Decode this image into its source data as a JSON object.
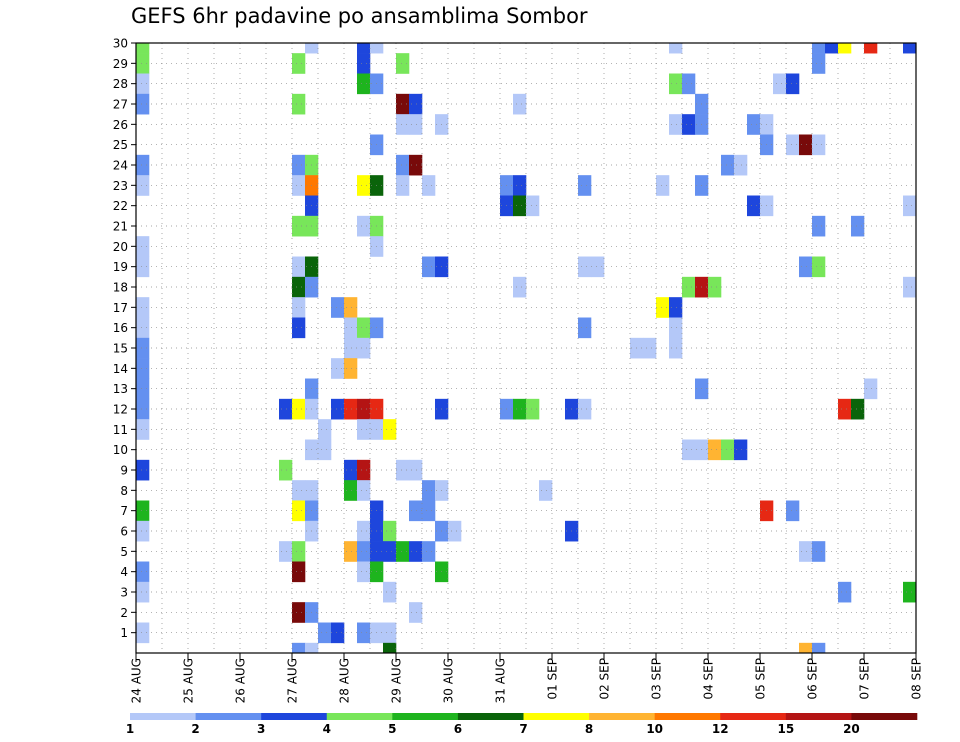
{
  "chart_data": {
    "type": "heatmap",
    "title": "GEFS 6hr padavine po ansamblima Sombor",
    "x_tick_labels": [
      "24 AUG",
      "25 AUG",
      "26 AUG",
      "27 AUG",
      "28 AUG",
      "29 AUG",
      "30 AUG",
      "31 AUG",
      "01 SEP",
      "02 SEP",
      "03 SEP",
      "04 SEP",
      "05 SEP",
      "06 SEP",
      "07 SEP",
      "08 SEP"
    ],
    "y_tick_labels": [
      "1",
      "2",
      "3",
      "4",
      "5",
      "6",
      "7",
      "8",
      "9",
      "10",
      "11",
      "12",
      "13",
      "14",
      "15",
      "16",
      "17",
      "18",
      "19",
      "20",
      "21",
      "22",
      "23",
      "24",
      "25",
      "26",
      "27",
      "28",
      "29",
      "30"
    ],
    "xlim_days": [
      0,
      15
    ],
    "ylim_members": [
      0,
      30
    ],
    "grid": true,
    "colorbar": {
      "labels": [
        "1",
        "2",
        "3",
        "4",
        "5",
        "6",
        "7",
        "8",
        "10",
        "12",
        "15",
        "20"
      ],
      "colors": [
        "#b4c8f8",
        "#6490f0",
        "#1e46dc",
        "#78e65a",
        "#1eb41e",
        "#0a640a",
        "#ffff00",
        "#ffb432",
        "#ff7800",
        "#e62814",
        "#b41414",
        "#780a0a"
      ]
    },
    "cells": [
      {
        "d": 0.0,
        "m": 30,
        "v": 4
      },
      {
        "d": 0.0,
        "m": 29,
        "v": 4
      },
      {
        "d": 0.0,
        "m": 28,
        "v": 1
      },
      {
        "d": 0.0,
        "m": 27,
        "v": 2
      },
      {
        "d": 0.0,
        "m": 24,
        "v": 2
      },
      {
        "d": 0.0,
        "m": 23,
        "v": 1
      },
      {
        "d": 0.0,
        "m": 20,
        "v": 1
      },
      {
        "d": 0.0,
        "m": 19,
        "v": 1
      },
      {
        "d": 0.0,
        "m": 17,
        "v": 1
      },
      {
        "d": 0.0,
        "m": 16,
        "v": 1
      },
      {
        "d": 0.0,
        "m": 15,
        "v": 2
      },
      {
        "d": 0.0,
        "m": 14,
        "v": 2
      },
      {
        "d": 0.0,
        "m": 13,
        "v": 2
      },
      {
        "d": 0.0,
        "m": 12,
        "v": 2
      },
      {
        "d": 0.0,
        "m": 11,
        "v": 1
      },
      {
        "d": 0.0,
        "m": 9,
        "v": 3
      },
      {
        "d": 0.0,
        "m": 7,
        "v": 5
      },
      {
        "d": 0.0,
        "m": 6,
        "v": 1
      },
      {
        "d": 0.0,
        "m": 4,
        "v": 2
      },
      {
        "d": 0.0,
        "m": 3,
        "v": 1
      },
      {
        "d": 0.0,
        "m": 1,
        "v": 1
      },
      {
        "d": 3.0,
        "m": 29,
        "v": 4
      },
      {
        "d": 3.0,
        "m": 27,
        "v": 4
      },
      {
        "d": 3.0,
        "m": 24,
        "v": 2
      },
      {
        "d": 3.25,
        "m": 24,
        "v": 4
      },
      {
        "d": 3.0,
        "m": 23,
        "v": 1
      },
      {
        "d": 3.25,
        "m": 23,
        "v": 10
      },
      {
        "d": 3.25,
        "m": 22,
        "v": 3
      },
      {
        "d": 3.0,
        "m": 21,
        "v": 4
      },
      {
        "d": 3.25,
        "m": 21,
        "v": 4
      },
      {
        "d": 3.0,
        "m": 19,
        "v": 1
      },
      {
        "d": 3.25,
        "m": 19,
        "v": 6
      },
      {
        "d": 3.0,
        "m": 18,
        "v": 6
      },
      {
        "d": 3.25,
        "m": 18,
        "v": 2
      },
      {
        "d": 3.0,
        "m": 17,
        "v": 1
      },
      {
        "d": 3.0,
        "m": 16,
        "v": 3
      },
      {
        "d": 3.25,
        "m": 13,
        "v": 2
      },
      {
        "d": 2.75,
        "m": 12,
        "v": 3
      },
      {
        "d": 3.0,
        "m": 12,
        "v": 7
      },
      {
        "d": 3.25,
        "m": 12,
        "v": 1
      },
      {
        "d": 2.75,
        "m": 9,
        "v": 4
      },
      {
        "d": 3.0,
        "m": 8,
        "v": 1
      },
      {
        "d": 3.25,
        "m": 8,
        "v": 1
      },
      {
        "d": 3.0,
        "m": 7,
        "v": 7
      },
      {
        "d": 3.25,
        "m": 7,
        "v": 2
      },
      {
        "d": 3.25,
        "m": 6,
        "v": 1
      },
      {
        "d": 2.75,
        "m": 5,
        "v": 1
      },
      {
        "d": 3.0,
        "m": 5,
        "v": 4
      },
      {
        "d": 3.0,
        "m": 4,
        "v": 20
      },
      {
        "d": 3.0,
        "m": 2,
        "v": 20
      },
      {
        "d": 3.25,
        "m": 2,
        "v": 2
      },
      {
        "d": 3.0,
        "m": 0,
        "v": 2
      },
      {
        "d": 3.25,
        "m": 0,
        "v": 1
      },
      {
        "d": 3.25,
        "m": 30,
        "v": 1
      },
      {
        "d": 3.5,
        "m": 11,
        "v": 1
      },
      {
        "d": 3.25,
        "m": 10,
        "v": 1
      },
      {
        "d": 3.5,
        "m": 10,
        "v": 1
      },
      {
        "d": 3.5,
        "m": 1,
        "v": 2
      },
      {
        "d": 3.75,
        "m": 1,
        "v": 3
      },
      {
        "d": 3.75,
        "m": 17,
        "v": 2
      },
      {
        "d": 4.0,
        "m": 17,
        "v": 8
      },
      {
        "d": 4.0,
        "m": 16,
        "v": 1
      },
      {
        "d": 4.25,
        "m": 16,
        "v": 4
      },
      {
        "d": 4.0,
        "m": 15,
        "v": 1
      },
      {
        "d": 4.25,
        "m": 15,
        "v": 1
      },
      {
        "d": 3.75,
        "m": 14,
        "v": 1
      },
      {
        "d": 4.0,
        "m": 14,
        "v": 8
      },
      {
        "d": 3.75,
        "m": 12,
        "v": 3
      },
      {
        "d": 4.0,
        "m": 12,
        "v": 12
      },
      {
        "d": 4.25,
        "m": 12,
        "v": 15
      },
      {
        "d": 4.0,
        "m": 9,
        "v": 3
      },
      {
        "d": 4.25,
        "m": 9,
        "v": 15
      },
      {
        "d": 4.0,
        "m": 8,
        "v": 5
      },
      {
        "d": 4.25,
        "m": 8,
        "v": 1
      },
      {
        "d": 4.25,
        "m": 6,
        "v": 1
      },
      {
        "d": 4.0,
        "m": 5,
        "v": 8
      },
      {
        "d": 4.25,
        "m": 5,
        "v": 2
      },
      {
        "d": 4.25,
        "m": 4,
        "v": 1
      },
      {
        "d": 4.25,
        "m": 1,
        "v": 2
      },
      {
        "d": 4.25,
        "m": 30,
        "v": 3
      },
      {
        "d": 4.5,
        "m": 30,
        "v": 1
      },
      {
        "d": 4.25,
        "m": 29,
        "v": 3
      },
      {
        "d": 4.25,
        "m": 28,
        "v": 5
      },
      {
        "d": 4.5,
        "m": 28,
        "v": 2
      },
      {
        "d": 4.25,
        "m": 21,
        "v": 1
      },
      {
        "d": 4.5,
        "m": 21,
        "v": 4
      },
      {
        "d": 4.5,
        "m": 20,
        "v": 1
      },
      {
        "d": 4.25,
        "m": 23,
        "v": 7
      },
      {
        "d": 4.5,
        "m": 23,
        "v": 6
      },
      {
        "d": 4.5,
        "m": 25,
        "v": 2
      },
      {
        "d": 4.5,
        "m": 16,
        "v": 2
      },
      {
        "d": 4.5,
        "m": 12,
        "v": 12
      },
      {
        "d": 4.25,
        "m": 11,
        "v": 1
      },
      {
        "d": 4.5,
        "m": 11,
        "v": 1
      },
      {
        "d": 4.75,
        "m": 11,
        "v": 7
      },
      {
        "d": 4.5,
        "m": 7,
        "v": 3
      },
      {
        "d": 4.5,
        "m": 6,
        "v": 3
      },
      {
        "d": 4.75,
        "m": 6,
        "v": 4
      },
      {
        "d": 4.5,
        "m": 5,
        "v": 3
      },
      {
        "d": 4.75,
        "m": 5,
        "v": 3
      },
      {
        "d": 4.5,
        "m": 4,
        "v": 5
      },
      {
        "d": 4.75,
        "m": 3,
        "v": 1
      },
      {
        "d": 4.5,
        "m": 1,
        "v": 1
      },
      {
        "d": 4.75,
        "m": 1,
        "v": 1
      },
      {
        "d": 4.75,
        "m": 0,
        "v": 6
      },
      {
        "d": 5.0,
        "m": 29,
        "v": 4
      },
      {
        "d": 5.0,
        "m": 27,
        "v": 20
      },
      {
        "d": 5.25,
        "m": 27,
        "v": 3
      },
      {
        "d": 5.0,
        "m": 26,
        "v": 1
      },
      {
        "d": 5.25,
        "m": 26,
        "v": 1
      },
      {
        "d": 5.0,
        "m": 24,
        "v": 2
      },
      {
        "d": 5.25,
        "m": 24,
        "v": 20
      },
      {
        "d": 5.0,
        "m": 23,
        "v": 1
      },
      {
        "d": 5.5,
        "m": 23,
        "v": 1
      },
      {
        "d": 5.5,
        "m": 19,
        "v": 2
      },
      {
        "d": 5.75,
        "m": 19,
        "v": 3
      },
      {
        "d": 5.75,
        "m": 12,
        "v": 3
      },
      {
        "d": 5.0,
        "m": 9,
        "v": 1
      },
      {
        "d": 5.25,
        "m": 9,
        "v": 1
      },
      {
        "d": 5.5,
        "m": 8,
        "v": 2
      },
      {
        "d": 5.75,
        "m": 8,
        "v": 1
      },
      {
        "d": 5.25,
        "m": 7,
        "v": 2
      },
      {
        "d": 5.5,
        "m": 7,
        "v": 2
      },
      {
        "d": 5.75,
        "m": 6,
        "v": 2
      },
      {
        "d": 6.0,
        "m": 6,
        "v": 1
      },
      {
        "d": 5.0,
        "m": 5,
        "v": 5
      },
      {
        "d": 5.25,
        "m": 5,
        "v": 3
      },
      {
        "d": 5.5,
        "m": 5,
        "v": 2
      },
      {
        "d": 5.75,
        "m": 4,
        "v": 5
      },
      {
        "d": 5.25,
        "m": 2,
        "v": 1
      },
      {
        "d": 5.75,
        "m": 26,
        "v": 1
      },
      {
        "d": 7.25,
        "m": 27,
        "v": 1
      },
      {
        "d": 7.0,
        "m": 23,
        "v": 2
      },
      {
        "d": 7.25,
        "m": 23,
        "v": 3
      },
      {
        "d": 7.0,
        "m": 22,
        "v": 3
      },
      {
        "d": 7.25,
        "m": 22,
        "v": 6
      },
      {
        "d": 7.5,
        "m": 22,
        "v": 1
      },
      {
        "d": 7.25,
        "m": 18,
        "v": 1
      },
      {
        "d": 7.0,
        "m": 12,
        "v": 2
      },
      {
        "d": 7.25,
        "m": 12,
        "v": 5
      },
      {
        "d": 7.5,
        "m": 12,
        "v": 4
      },
      {
        "d": 7.75,
        "m": 8,
        "v": 1
      },
      {
        "d": 8.25,
        "m": 12,
        "v": 3
      },
      {
        "d": 8.5,
        "m": 12,
        "v": 1
      },
      {
        "d": 8.25,
        "m": 6,
        "v": 3
      },
      {
        "d": 8.5,
        "m": 23,
        "v": 2
      },
      {
        "d": 8.5,
        "m": 19,
        "v": 1
      },
      {
        "d": 8.75,
        "m": 19,
        "v": 1
      },
      {
        "d": 8.5,
        "m": 16,
        "v": 2
      },
      {
        "d": 9.5,
        "m": 15,
        "v": 1
      },
      {
        "d": 9.75,
        "m": 15,
        "v": 1
      },
      {
        "d": 10.0,
        "m": 17,
        "v": 7
      },
      {
        "d": 10.25,
        "m": 17,
        "v": 3
      },
      {
        "d": 10.25,
        "m": 16,
        "v": 1
      },
      {
        "d": 10.25,
        "m": 15,
        "v": 1
      },
      {
        "d": 10.0,
        "m": 23,
        "v": 1
      },
      {
        "d": 10.25,
        "m": 30,
        "v": 1
      },
      {
        "d": 10.25,
        "m": 28,
        "v": 4
      },
      {
        "d": 10.5,
        "m": 28,
        "v": 2
      },
      {
        "d": 10.25,
        "m": 26,
        "v": 1
      },
      {
        "d": 10.5,
        "m": 26,
        "v": 3
      },
      {
        "d": 10.75,
        "m": 26,
        "v": 2
      },
      {
        "d": 10.75,
        "m": 27,
        "v": 2
      },
      {
        "d": 10.75,
        "m": 23,
        "v": 2
      },
      {
        "d": 10.5,
        "m": 18,
        "v": 4
      },
      {
        "d": 10.75,
        "m": 18,
        "v": 15
      },
      {
        "d": 11.0,
        "m": 18,
        "v": 4
      },
      {
        "d": 10.75,
        "m": 13,
        "v": 2
      },
      {
        "d": 10.5,
        "m": 10,
        "v": 1
      },
      {
        "d": 10.75,
        "m": 10,
        "v": 1
      },
      {
        "d": 11.0,
        "m": 10,
        "v": 8
      },
      {
        "d": 11.25,
        "m": 10,
        "v": 4
      },
      {
        "d": 11.5,
        "m": 10,
        "v": 3
      },
      {
        "d": 11.25,
        "m": 24,
        "v": 2
      },
      {
        "d": 11.5,
        "m": 24,
        "v": 1
      },
      {
        "d": 11.75,
        "m": 26,
        "v": 2
      },
      {
        "d": 12.0,
        "m": 26,
        "v": 1
      },
      {
        "d": 12.0,
        "m": 25,
        "v": 2
      },
      {
        "d": 11.75,
        "m": 22,
        "v": 3
      },
      {
        "d": 12.0,
        "m": 22,
        "v": 1
      },
      {
        "d": 12.0,
        "m": 7,
        "v": 12
      },
      {
        "d": 12.5,
        "m": 7,
        "v": 2
      },
      {
        "d": 12.25,
        "m": 28,
        "v": 1
      },
      {
        "d": 12.5,
        "m": 28,
        "v": 3
      },
      {
        "d": 12.5,
        "m": 25,
        "v": 1
      },
      {
        "d": 12.75,
        "m": 25,
        "v": 20
      },
      {
        "d": 13.0,
        "m": 25,
        "v": 1
      },
      {
        "d": 12.75,
        "m": 19,
        "v": 2
      },
      {
        "d": 13.0,
        "m": 19,
        "v": 4
      },
      {
        "d": 13.0,
        "m": 21,
        "v": 2
      },
      {
        "d": 12.75,
        "m": 5,
        "v": 1
      },
      {
        "d": 13.0,
        "m": 5,
        "v": 2
      },
      {
        "d": 12.75,
        "m": 0,
        "v": 8
      },
      {
        "d": 13.0,
        "m": 0,
        "v": 2
      },
      {
        "d": 13.0,
        "m": 30,
        "v": 2
      },
      {
        "d": 13.25,
        "m": 30,
        "v": 3
      },
      {
        "d": 13.5,
        "m": 30,
        "v": 7
      },
      {
        "d": 13.0,
        "m": 29,
        "v": 2
      },
      {
        "d": 13.5,
        "m": 12,
        "v": 12
      },
      {
        "d": 13.75,
        "m": 12,
        "v": 6
      },
      {
        "d": 13.5,
        "m": 3,
        "v": 2
      },
      {
        "d": 13.75,
        "m": 21,
        "v": 2
      },
      {
        "d": 14.0,
        "m": 30,
        "v": 12
      },
      {
        "d": 14.0,
        "m": 13,
        "v": 1
      },
      {
        "d": 14.75,
        "m": 22,
        "v": 1
      },
      {
        "d": 14.75,
        "m": 18,
        "v": 1
      },
      {
        "d": 14.75,
        "m": 3,
        "v": 5
      },
      {
        "d": 14.75,
        "m": 30,
        "v": 3
      }
    ]
  }
}
